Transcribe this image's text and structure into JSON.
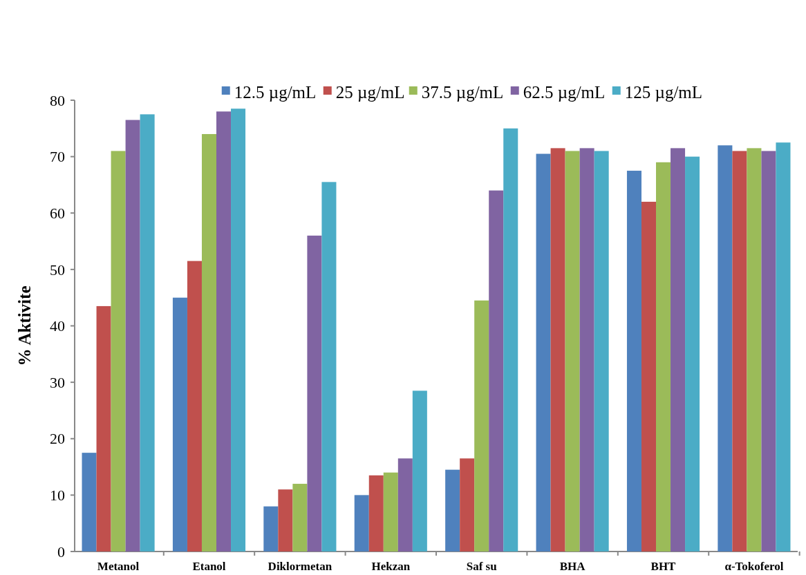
{
  "chart_data": {
    "type": "bar",
    "ylabel": "% Aktivite",
    "categories": [
      "Metanol",
      "Etanol",
      "Diklormetan",
      "Hekzan",
      "Saf su",
      "BHA",
      "BHT",
      "α-Tokoferol"
    ],
    "series": [
      {
        "name": "12.5 µg/mL",
        "color": "#4f81bd",
        "values": [
          17.5,
          45,
          8,
          10,
          14.5,
          70.5,
          67.5,
          72
        ]
      },
      {
        "name": "25 µg/mL",
        "color": "#c0504d",
        "values": [
          43.5,
          51.5,
          11,
          13.5,
          16.5,
          71.5,
          62,
          71
        ]
      },
      {
        "name": "37.5 µg/mL",
        "color": "#9bbb59",
        "values": [
          71,
          74,
          12,
          14,
          44.5,
          71,
          69,
          71.5
        ]
      },
      {
        "name": "62.5 µg/mL",
        "color": "#8064a2",
        "values": [
          76.5,
          78,
          56,
          16.5,
          64,
          71.5,
          71.5,
          71
        ]
      },
      {
        "name": "125 µg/mL",
        "color": "#4bacc6",
        "values": [
          77.5,
          78.5,
          65.5,
          28.5,
          75,
          71,
          70,
          72.5
        ]
      }
    ],
    "ylim": [
      0,
      80
    ],
    "yticks": [
      0,
      10,
      20,
      30,
      40,
      50,
      60,
      70,
      80
    ],
    "grid": false,
    "legend": "top"
  }
}
